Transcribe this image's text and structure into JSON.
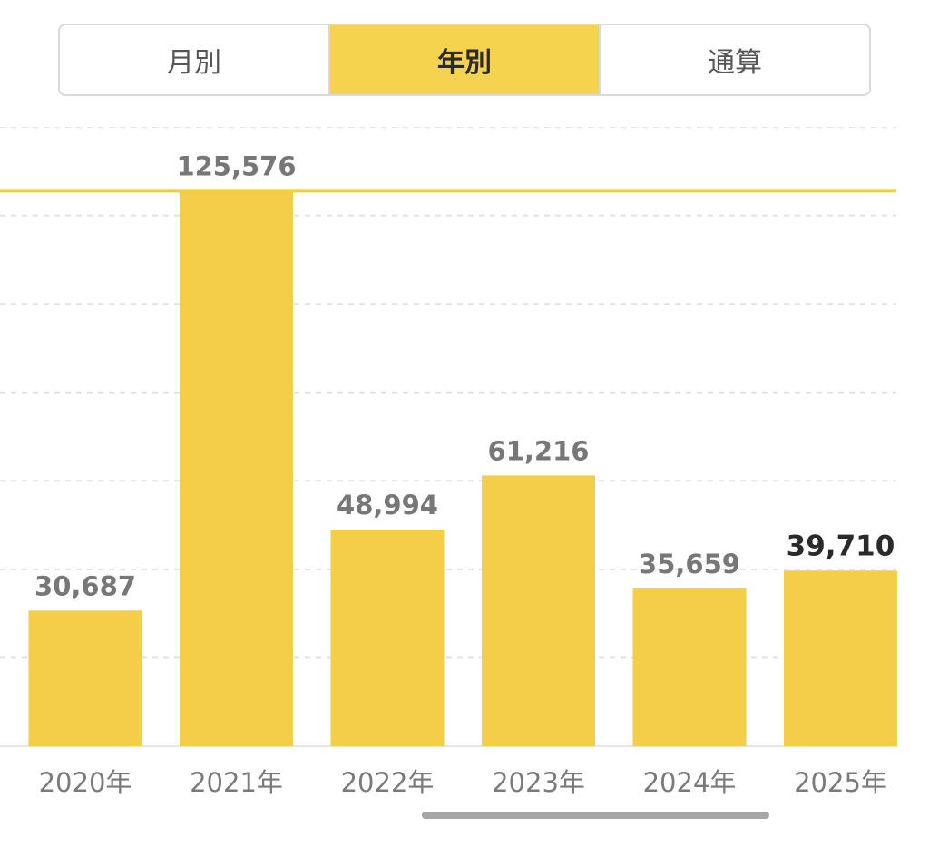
{
  "tabs": [
    {
      "label": "月別",
      "active": false
    },
    {
      "label": "年別",
      "active": true
    },
    {
      "label": "通算",
      "active": false
    }
  ],
  "colors": {
    "bar": "#f4ce49",
    "reference_line": "#f2cf3f",
    "value_label": "#777777",
    "value_label_highlight": "#2a2a2a",
    "tick_label": "#7a7a7a",
    "grid": "#e2e2e2"
  },
  "chart_data": {
    "type": "bar",
    "categories": [
      "2020年",
      "2021年",
      "2022年",
      "2023年",
      "2024年",
      "2025年"
    ],
    "values": [
      30687,
      125576,
      48994,
      61216,
      35659,
      39710
    ],
    "value_labels": [
      "30,687",
      "125,576",
      "48,994",
      "61,216",
      "35,659",
      "39,710"
    ],
    "highlighted_index": 5,
    "reference_line_value": 125576,
    "ylim": [
      0,
      140000
    ],
    "grid": true,
    "title": "",
    "xlabel": "",
    "ylabel": ""
  }
}
